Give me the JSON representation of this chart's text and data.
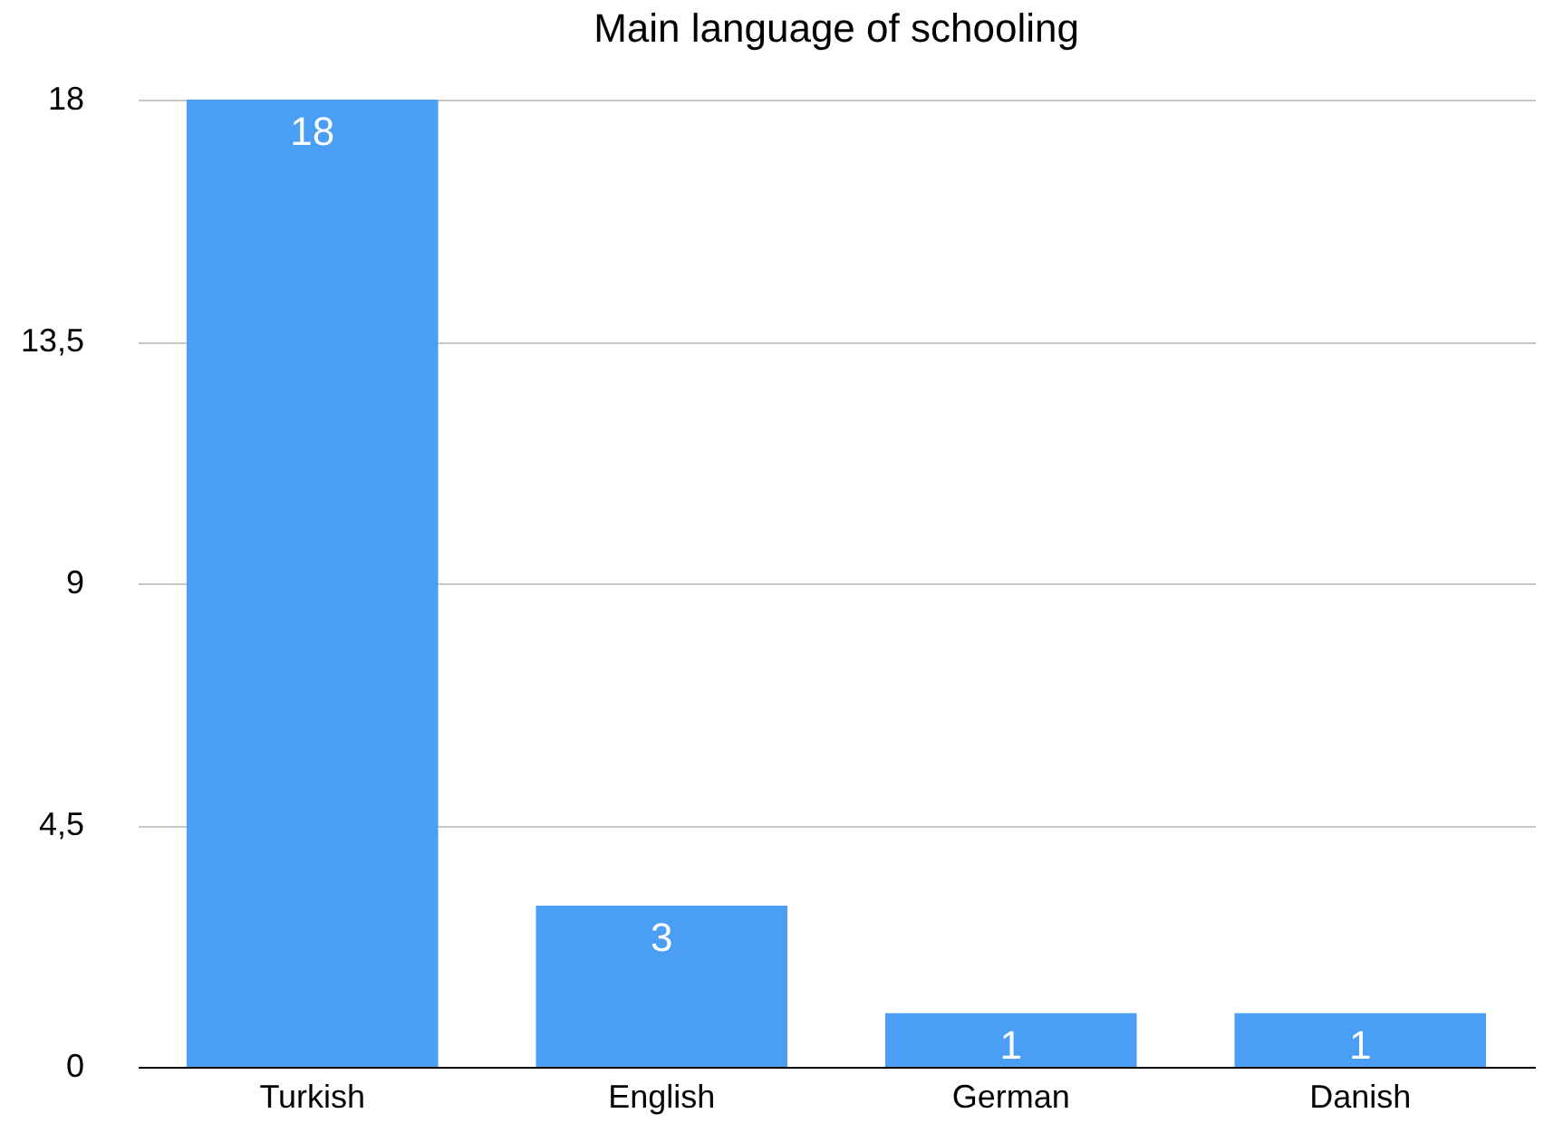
{
  "chart_data": {
    "type": "bar",
    "title": "Main language of schooling",
    "categories": [
      "Turkish",
      "English",
      "German",
      "Danish"
    ],
    "values": [
      18,
      3,
      1,
      1
    ],
    "color": "#4a9ff5",
    "ylim": [
      0,
      18
    ],
    "yticks": [
      0,
      {
        "value": 4.5,
        "label": "4,5"
      },
      9,
      {
        "value": 13.5,
        "label": "13,5"
      },
      18
    ],
    "grid": "y",
    "data_labels": true
  }
}
